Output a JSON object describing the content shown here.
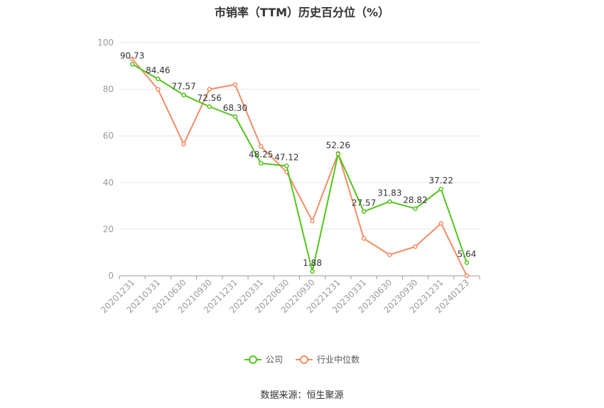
{
  "chart_data": {
    "type": "line",
    "title": "市销率（TTM）历史百分位（%）",
    "categories": [
      "20201231",
      "20210331",
      "20210630",
      "20210930",
      "20211231",
      "20220331",
      "20220630",
      "20220930",
      "20221231",
      "20230331",
      "20230630",
      "20230930",
      "20231231",
      "20240123"
    ],
    "series": [
      {
        "name": "公司",
        "color": "#52c41a",
        "values": [
          90.73,
          84.46,
          77.57,
          72.56,
          68.3,
          48.25,
          47.12,
          1.88,
          52.26,
          27.57,
          31.83,
          28.82,
          37.22,
          5.64
        ],
        "labels": [
          "90.73",
          "84.46",
          "77.57",
          "72.56",
          "68.30",
          "48.25",
          "47.12",
          "1.88",
          "52.26",
          "27.57",
          "31.83",
          "28.82",
          "37.22",
          "5.64"
        ]
      },
      {
        "name": "行业中位数",
        "color": "#f28c64",
        "values": [
          93,
          80,
          56.5,
          80,
          82,
          55.5,
          44.5,
          23.5,
          52.5,
          16,
          9,
          12.5,
          22.5,
          0
        ]
      }
    ],
    "ylim": [
      0,
      100
    ],
    "yticks": [
      0,
      20,
      40,
      60,
      80,
      100
    ],
    "grid": true,
    "legend": "bottom-center"
  },
  "source": "数据来源：恒生聚源"
}
